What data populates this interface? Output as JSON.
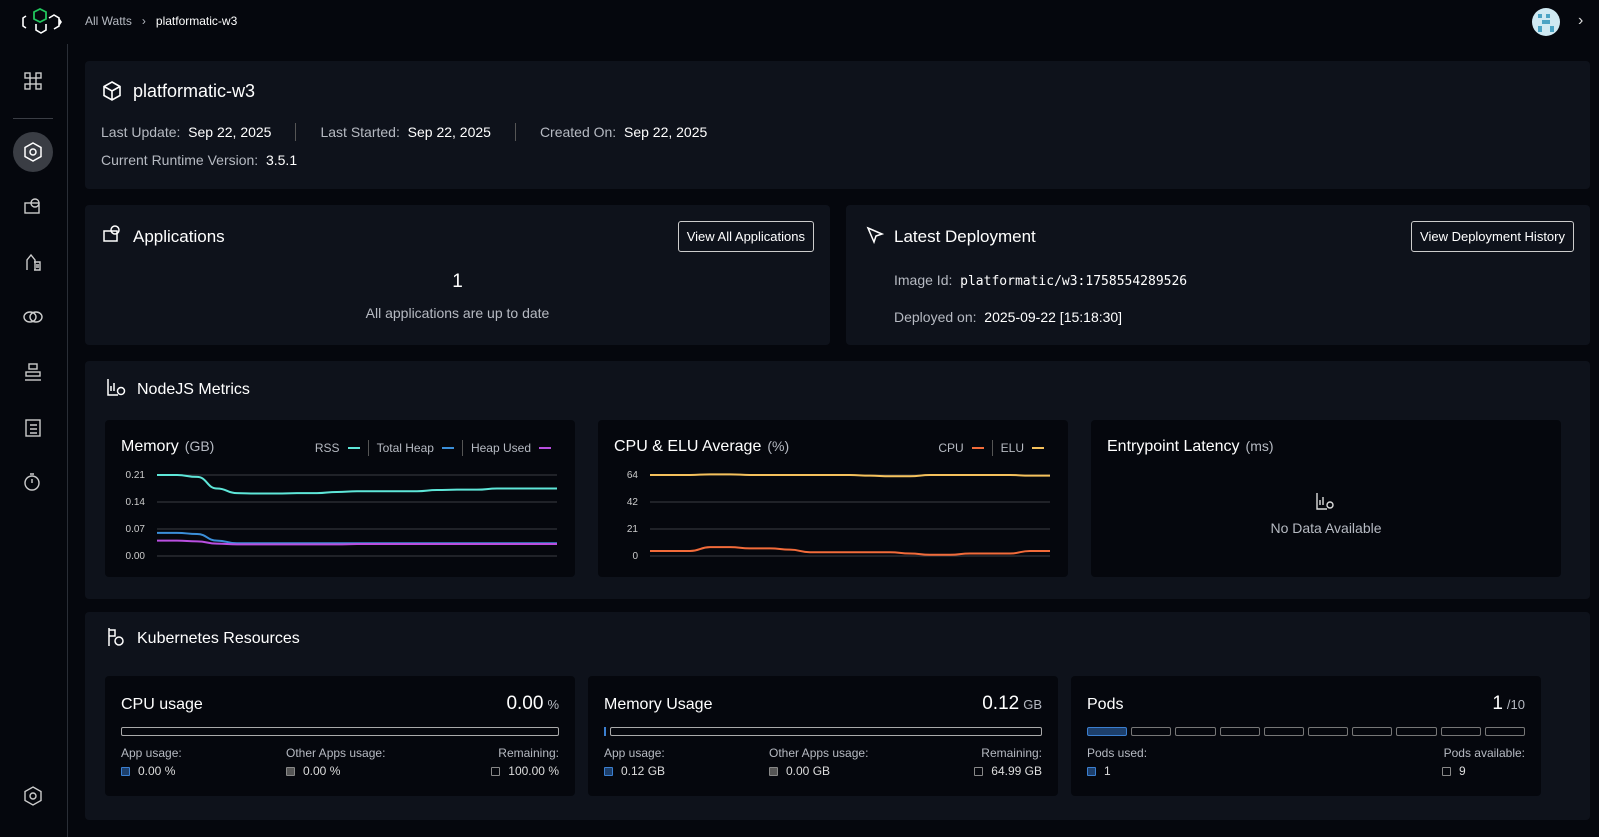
{
  "breadcrumb": {
    "root": "All Watts",
    "current": "platformatic-w3"
  },
  "header": {
    "title": "platformatic-w3",
    "last_update_label": "Last Update:",
    "last_update": "Sep 22, 2025",
    "last_started_label": "Last Started:",
    "last_started": "Sep 22, 2025",
    "created_label": "Created On:",
    "created": "Sep 22, 2025",
    "runtime_label": "Current Runtime Version:",
    "runtime": "3.5.1"
  },
  "applications": {
    "title": "Applications",
    "button": "View All Applications",
    "count": "1",
    "status": "All applications are up to date"
  },
  "deployment": {
    "title": "Latest Deployment",
    "button": "View Deployment History",
    "image_label": "Image Id:",
    "image": "platformatic/w3:1758554289526",
    "deployed_label": "Deployed on:",
    "deployed": "2025-09-22 [15:18:30]"
  },
  "metrics": {
    "title": "NodeJS Metrics",
    "latency": {
      "title": "Entrypoint Latency",
      "unit": "(ms)",
      "empty": "No Data Available"
    }
  },
  "chart_data": [
    {
      "type": "line",
      "title": "Memory",
      "unit": "(GB)",
      "yticks": [
        "0.21",
        "0.14",
        "0.07",
        "0.00"
      ],
      "ylim": [
        0,
        0.21
      ],
      "grid": true,
      "legend": "top-right",
      "series": [
        {
          "name": "RSS",
          "color": "#5ee6d8",
          "values": [
            0.21,
            0.21,
            0.205,
            0.175,
            0.163,
            0.162,
            0.162,
            0.163,
            0.163,
            0.166,
            0.168,
            0.168,
            0.168,
            0.168,
            0.171,
            0.172,
            0.172,
            0.175,
            0.175,
            0.175,
            0.175
          ]
        },
        {
          "name": "Total Heap",
          "color": "#3b8fd9",
          "values": [
            0.06,
            0.06,
            0.057,
            0.04,
            0.033,
            0.033,
            0.033,
            0.033,
            0.033,
            0.033,
            0.033,
            0.033,
            0.033,
            0.033,
            0.033,
            0.033,
            0.033,
            0.033,
            0.033,
            0.033,
            0.033
          ]
        },
        {
          "name": "Heap Used",
          "color": "#b94fe0",
          "values": [
            0.04,
            0.04,
            0.038,
            0.032,
            0.03,
            0.03,
            0.03,
            0.03,
            0.03,
            0.03,
            0.031,
            0.031,
            0.031,
            0.031,
            0.031,
            0.031,
            0.031,
            0.031,
            0.031,
            0.031,
            0.031
          ]
        }
      ]
    },
    {
      "type": "line",
      "title": "CPU & ELU Average",
      "unit": "(%)",
      "yticks": [
        "64",
        "42",
        "21",
        "0"
      ],
      "ylim": [
        0,
        64
      ],
      "grid": true,
      "legend": "top-right",
      "series": [
        {
          "name": "CPU",
          "color": "#f26b3a",
          "values": [
            4,
            4,
            4,
            7,
            7,
            6,
            6,
            5,
            3,
            3,
            3,
            3,
            3,
            2,
            1,
            1,
            2,
            2,
            2,
            4,
            4
          ]
        },
        {
          "name": "ELU",
          "color": "#f5c15c",
          "values": [
            64,
            64,
            64,
            64.5,
            64.5,
            64,
            64,
            64,
            64,
            64,
            64,
            63.5,
            63,
            63,
            64,
            64,
            64,
            64,
            64,
            63.5,
            63.5
          ]
        }
      ]
    }
  ],
  "kubernetes": {
    "title": "Kubernetes Resources",
    "cpu": {
      "title": "CPU usage",
      "value": "0.00",
      "unit": "%",
      "app_label": "App usage:",
      "app": "0.00 %",
      "other_label": "Other Apps usage:",
      "other": "0.00 %",
      "remaining_label": "Remaining:",
      "remaining": "100.00 %",
      "app_fraction": 0
    },
    "memory": {
      "title": "Memory Usage",
      "value": "0.12",
      "unit": "GB",
      "app_label": "App usage:",
      "app": "0.12 GB",
      "other_label": "Other Apps usage:",
      "other": "0.00 GB",
      "remaining_label": "Remaining:",
      "remaining": "64.99 GB",
      "app_fraction": 0.002
    },
    "pods": {
      "title": "Pods",
      "value": "1",
      "total": "/10",
      "used_label": "Pods used:",
      "used": "1",
      "available_label": "Pods available:",
      "available": "9"
    }
  },
  "colors": {
    "accent": "#2f6fb8",
    "brand": "#21c55d"
  }
}
